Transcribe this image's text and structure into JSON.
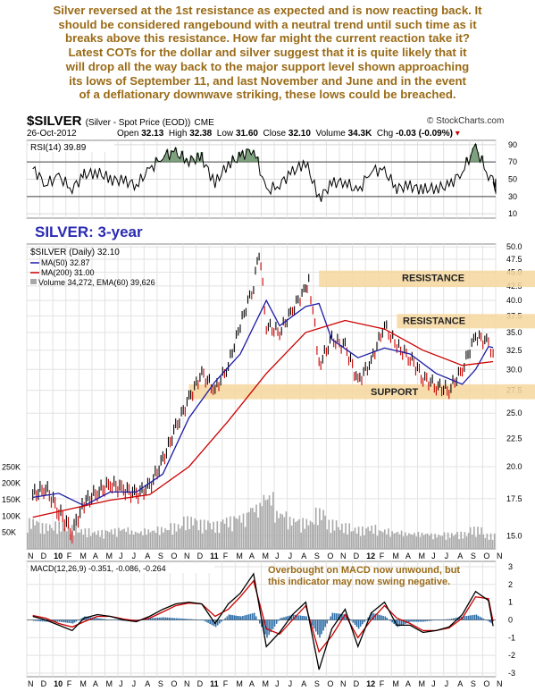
{
  "commentary_lines": [
    "Silver reversed at the 1st resistance as expected and is now reacting back. It",
    "should be considered rangebound with a neutral trend until such time as it",
    "breaks above this resistance. How far might the current reaction take it?",
    "Latest COTs for the dollar and silver suggest that it is quite likely that it",
    "will drop all the way back to the major support level shown approaching",
    "its lows of September 11, and last November and June and in the event",
    "of a deflationary downwave striking, these lows could be breached."
  ],
  "header": {
    "symbol": "$SILVER",
    "description": "(Silver - Spot Price (EOD))",
    "exchange": "CME",
    "brand": "© StockCharts.com",
    "date": "26-Oct-2012",
    "open_label": "Open",
    "open": "32.13",
    "high_label": "High",
    "high": "32.38",
    "low_label": "Low",
    "low": "31.60",
    "close_label": "Close",
    "close": "32.10",
    "volume_label": "Volume",
    "volume": "34.3K",
    "chg_label": "Chg",
    "chg": "-0.03 (-0.09%)"
  },
  "colors": {
    "price_up": "#000000",
    "price_down": "#cc0000",
    "ma50": "#1a1aa6",
    "ma200": "#cc0000",
    "band": "#f6d79e",
    "volume": "#a8a8a8",
    "macd_line": "#000000",
    "macd_signal": "#cc0000",
    "histogram": "#2f6fa8",
    "rsi_fill": "#5e8a5e",
    "annotation_blue": "#2a2ab3",
    "annotation_brown": "#9a6b17"
  },
  "chart_data": [
    {
      "panel": "rsi",
      "type": "line",
      "legend": "RSI(14) 39.89",
      "yticks": [
        10,
        30,
        50,
        70,
        90
      ],
      "ylim": [
        5,
        95
      ],
      "reference_lines": [
        30,
        70
      ],
      "series": [
        {
          "name": "RSI(14)",
          "x": [
            "2009-11",
            "2009-12",
            "2010-01",
            "2010-02",
            "2010-03",
            "2010-04",
            "2010-05",
            "2010-06",
            "2010-07",
            "2010-08",
            "2010-09",
            "2010-10",
            "2010-11",
            "2010-12",
            "2011-01",
            "2011-02",
            "2011-03",
            "2011-04",
            "2011-05",
            "2011-06",
            "2011-07",
            "2011-08",
            "2011-09",
            "2011-10",
            "2011-11",
            "2011-12",
            "2012-01",
            "2012-02",
            "2012-03",
            "2012-04",
            "2012-05",
            "2012-06",
            "2012-07",
            "2012-08",
            "2012-09",
            "2012-10",
            "2012-10-26"
          ],
          "values": [
            62,
            45,
            52,
            40,
            55,
            58,
            50,
            48,
            44,
            60,
            78,
            80,
            72,
            75,
            45,
            68,
            76,
            86,
            35,
            45,
            58,
            70,
            28,
            45,
            48,
            34,
            62,
            58,
            40,
            42,
            38,
            40,
            42,
            60,
            86,
            55,
            40
          ]
        }
      ]
    },
    {
      "panel": "price",
      "type": "line",
      "title": "SILVER: 3-year",
      "legend": [
        "$SILVER (Daily) 32.10",
        "MA(50) 32.87",
        "MA(200) 31.00",
        "Volume 34,272, EMA(60) 39,626"
      ],
      "yticks": [
        15.0,
        17.5,
        20.0,
        22.5,
        25.0,
        27.5,
        30.0,
        32.5,
        35.0,
        37.5,
        40.0,
        42.5,
        45.0,
        47.5,
        50.0
      ],
      "ylim": [
        14.2,
        50.6
      ],
      "x_months": [
        "N",
        "D",
        "10",
        "F",
        "M",
        "A",
        "M",
        "J",
        "J",
        "A",
        "S",
        "O",
        "N",
        "D",
        "11",
        "F",
        "M",
        "A",
        "M",
        "J",
        "J",
        "A",
        "S",
        "O",
        "N",
        "D",
        "12",
        "F",
        "M",
        "A",
        "M",
        "J",
        "J",
        "A",
        "S",
        "O",
        "N"
      ],
      "bands": [
        {
          "label": "RESISTANCE",
          "from": 42.3,
          "to": 45.3
        },
        {
          "label": "RESISTANCE",
          "from": 35.6,
          "to": 37.8
        },
        {
          "label": "SUPPORT",
          "from": 26.5,
          "to": 28.2
        }
      ],
      "series": [
        {
          "name": "$SILVER",
          "x": [
            "2009-11",
            "2009-12",
            "2010-01",
            "2010-02",
            "2010-03",
            "2010-04",
            "2010-05",
            "2010-06",
            "2010-07",
            "2010-08",
            "2010-09",
            "2010-10",
            "2010-11",
            "2010-12",
            "2011-01",
            "2011-02",
            "2011-03",
            "2011-04",
            "2011-04-28",
            "2011-05",
            "2011-06",
            "2011-07",
            "2011-08",
            "2011-08-22",
            "2011-09",
            "2011-10",
            "2011-11",
            "2011-12",
            "2012-01",
            "2012-02",
            "2012-03",
            "2012-04",
            "2012-05",
            "2012-06",
            "2012-07",
            "2012-08",
            "2012-09",
            "2012-10",
            "2012-10-26"
          ],
          "values": [
            17.8,
            18.3,
            16.6,
            15.2,
            17.2,
            18.0,
            18.6,
            18.2,
            17.8,
            18.4,
            20.5,
            23.5,
            26.5,
            29.5,
            27.5,
            30.5,
            36.0,
            42.5,
            49.0,
            36.0,
            35.0,
            38.5,
            42.0,
            43.5,
            30.5,
            34.0,
            33.0,
            28.5,
            31.0,
            36.0,
            33.0,
            31.5,
            29.0,
            28.0,
            27.5,
            30.0,
            34.5,
            33.5,
            32.1
          ]
        },
        {
          "name": "MA(50)",
          "x": [
            "2009-11",
            "2010-01",
            "2010-03",
            "2010-05",
            "2010-07",
            "2010-09",
            "2010-11",
            "2011-01",
            "2011-03",
            "2011-05",
            "2011-06",
            "2011-08",
            "2011-09",
            "2011-10",
            "2011-12",
            "2012-02",
            "2012-04",
            "2012-06",
            "2012-08",
            "2012-09",
            "2012-10",
            "2012-10-26"
          ],
          "values": [
            17.6,
            17.9,
            17.0,
            18.0,
            18.0,
            19.4,
            24.5,
            28.5,
            32.0,
            40.0,
            36.0,
            39.0,
            39.5,
            34.0,
            31.5,
            32.8,
            32.0,
            29.5,
            28.2,
            30.0,
            33.0,
            32.87
          ]
        },
        {
          "name": "MA(200)",
          "x": [
            "2009-11",
            "2010-02",
            "2010-05",
            "2010-08",
            "2010-11",
            "2011-02",
            "2011-05",
            "2011-08",
            "2011-11",
            "2012-02",
            "2012-05",
            "2012-08",
            "2012-10-26"
          ],
          "values": [
            16.2,
            16.8,
            17.4,
            17.8,
            20.0,
            24.2,
            29.5,
            35.0,
            36.8,
            35.5,
            32.5,
            30.5,
            31.0
          ]
        }
      ]
    },
    {
      "panel": "volume",
      "type": "bar",
      "yticks_left": [
        "250K",
        "200K",
        "150K",
        "100K",
        "50K"
      ],
      "values_by_month": [
        90000,
        75000,
        80000,
        70000,
        60000,
        55000,
        60000,
        65000,
        55000,
        60000,
        65000,
        75000,
        95000,
        85000,
        80000,
        95000,
        105000,
        135000,
        170000,
        115000,
        95000,
        90000,
        120000,
        85000,
        75000,
        65000,
        70000,
        60000,
        55000,
        50000,
        50000,
        45000,
        48000,
        50000,
        65000,
        45000,
        40000
      ]
    },
    {
      "panel": "macd",
      "type": "line",
      "legend": "MACD(12,26,9) -0.351, -0.086, -0.264",
      "annotation": "Overbought on MACD now unwound, but this indicator may now swing negative.",
      "annotation_lines": [
        "Overbought on MACD now unwound, but",
        "this indicator may now swing negative."
      ],
      "yticks": [
        -3,
        -2,
        -1,
        0,
        1,
        2,
        3
      ],
      "ylim": [
        -3.2,
        3.3
      ],
      "x_labels": [
        "N",
        "D",
        "10",
        "F",
        "M",
        "A",
        "M",
        "J",
        "J",
        "A",
        "S",
        "O",
        "N",
        "D",
        "11",
        "F",
        "M",
        "A",
        "M",
        "J",
        "J",
        "A",
        "S",
        "O",
        "N",
        "D",
        "12",
        "F",
        "M",
        "A",
        "M",
        "J",
        "J",
        "A",
        "S",
        "O",
        "N"
      ],
      "series": [
        {
          "name": "MACD",
          "x": [
            "2009-11",
            "2009-12",
            "2010-01",
            "2010-02",
            "2010-03",
            "2010-04",
            "2010-05",
            "2010-06",
            "2010-07",
            "2010-08",
            "2010-09",
            "2010-10",
            "2010-11",
            "2010-12",
            "2011-01",
            "2011-02",
            "2011-03",
            "2011-04",
            "2011-05",
            "2011-06",
            "2011-07",
            "2011-08",
            "2011-09",
            "2011-10",
            "2011-11",
            "2011-12",
            "2012-01",
            "2012-02",
            "2012-03",
            "2012-04",
            "2012-05",
            "2012-06",
            "2012-07",
            "2012-08",
            "2012-09",
            "2012-10",
            "2012-10-26"
          ],
          "values": [
            0.2,
            0.0,
            -0.3,
            -0.6,
            0.1,
            0.3,
            0.2,
            0.0,
            -0.1,
            0.2,
            0.6,
            0.9,
            1.0,
            0.9,
            -0.2,
            0.9,
            1.5,
            2.6,
            -1.5,
            -0.7,
            0.3,
            1.0,
            -2.8,
            -0.5,
            0.6,
            -1.5,
            0.4,
            1.0,
            -0.3,
            -0.3,
            -0.7,
            -0.6,
            -0.4,
            0.3,
            1.6,
            1.1,
            -0.35
          ]
        },
        {
          "name": "Signal",
          "x": [
            "2009-11",
            "2009-12",
            "2010-01",
            "2010-02",
            "2010-03",
            "2010-04",
            "2010-05",
            "2010-06",
            "2010-07",
            "2010-08",
            "2010-09",
            "2010-10",
            "2010-11",
            "2010-12",
            "2011-01",
            "2011-02",
            "2011-03",
            "2011-04",
            "2011-05",
            "2011-06",
            "2011-07",
            "2011-08",
            "2011-09",
            "2011-10",
            "2011-11",
            "2011-12",
            "2012-01",
            "2012-02",
            "2012-03",
            "2012-04",
            "2012-05",
            "2012-06",
            "2012-07",
            "2012-08",
            "2012-09",
            "2012-10",
            "2012-10-26"
          ],
          "values": [
            0.25,
            0.1,
            -0.2,
            -0.4,
            -0.1,
            0.2,
            0.2,
            0.05,
            -0.05,
            0.1,
            0.45,
            0.8,
            0.95,
            0.9,
            0.2,
            0.6,
            1.3,
            2.2,
            -0.5,
            -0.8,
            0.0,
            0.8,
            -1.8,
            -0.9,
            0.3,
            -1.0,
            0.0,
            0.8,
            0.1,
            -0.2,
            -0.6,
            -0.6,
            -0.45,
            0.1,
            1.3,
            1.2,
            -0.09
          ]
        }
      ]
    }
  ]
}
